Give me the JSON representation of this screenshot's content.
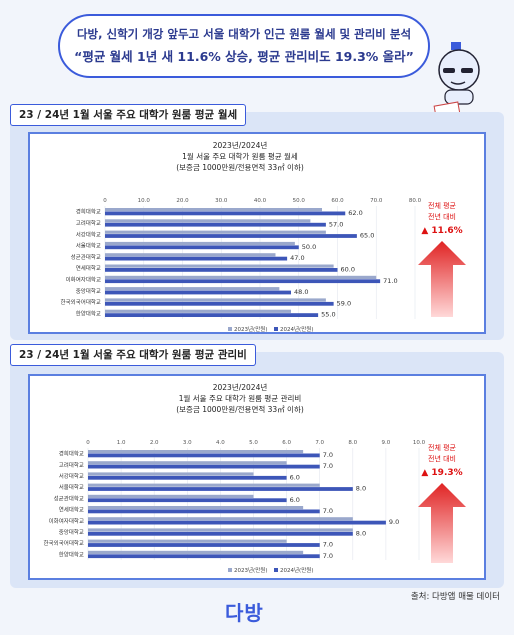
{
  "header": {
    "line1": "다방, 신학기 개강 앞두고 서울 대학가 인근 원룸 월세 및 관리비 분석",
    "line2": "“평균 월세 1년 새 11.6% 상승, 평균 관리비도 19.3% 올라”"
  },
  "colors": {
    "accent": "#3b5bdb",
    "bar2023": "#9aa8cc",
    "bar2024": "#3d56b8",
    "arrow": "#e02424"
  },
  "chart_data": [
    {
      "type": "bar",
      "section_title": "23 / 24년 1월 서울 주요 대학가 원룸 평균 월세",
      "title_lines": [
        "2023년/2024년",
        "1월 서울 주요 대학가 원룸 평균 월세",
        "(보증금 1000만원/전용면적 33㎡ 이하)"
      ],
      "orientation": "horizontal",
      "xlim": [
        0,
        80
      ],
      "ticks": [
        "0",
        "10.0",
        "20.0",
        "30.0",
        "40.0",
        "50.0",
        "60.0",
        "70.0",
        "80.0"
      ],
      "categories": [
        "경희대학교",
        "고려대학교",
        "서강대학교",
        "서울대학교",
        "성균관대학교",
        "연세대학교",
        "이화여자대학교",
        "중앙대학교",
        "한국외국어대학교",
        "한양대학교"
      ],
      "series": [
        {
          "name": "2023년(만원)",
          "values": [
            56,
            53,
            57,
            49,
            44,
            59,
            70,
            45,
            57,
            48
          ]
        },
        {
          "name": "2024년(만원)",
          "values": [
            62,
            57,
            65,
            50,
            47,
            60,
            71,
            48,
            59,
            55
          ]
        }
      ],
      "data_labels": [
        "62.0",
        "57.0",
        "65.0",
        "50.0",
        "47.0",
        "60.0",
        "71.0",
        "48.0",
        "59.0",
        "55.0"
      ],
      "side_text": [
        "전체 평균",
        "전년 대비"
      ],
      "side_value": "▲ 11.6%"
    },
    {
      "type": "bar",
      "section_title": "23 / 24년 1월 서울 주요 대학가 원룸 평균 관리비",
      "title_lines": [
        "2023년/2024년",
        "1월 서울 주요 대학가 원룸 평균 관리비",
        "(보증금 1000만원/전용면적 33㎡ 이하)"
      ],
      "orientation": "horizontal",
      "xlim": [
        0,
        10
      ],
      "ticks": [
        "0",
        "1.0",
        "2.0",
        "3.0",
        "4.0",
        "5.0",
        "6.0",
        "7.0",
        "8.0",
        "9.0",
        "10.0"
      ],
      "categories": [
        "경희대학교",
        "고려대학교",
        "서강대학교",
        "서울대학교",
        "성균관대학교",
        "연세대학교",
        "이화여자대학교",
        "중앙대학교",
        "한국외국어대학교",
        "한양대학교"
      ],
      "series": [
        {
          "name": "2023년(만원)",
          "values": [
            6.5,
            6.0,
            5.0,
            7.0,
            5.0,
            6.5,
            8.0,
            8.0,
            6.0,
            6.5
          ]
        },
        {
          "name": "2024년(만원)",
          "values": [
            7,
            7,
            6,
            8,
            6,
            7,
            9,
            8,
            7,
            7
          ]
        }
      ],
      "data_labels": [
        "7.0",
        "7.0",
        "6.0",
        "8.0",
        "6.0",
        "7.0",
        "9.0",
        "8.0",
        "7.0",
        "7.0"
      ],
      "side_text": [
        "전체 평균",
        "전년 대비"
      ],
      "side_value": "▲ 19.3%"
    }
  ],
  "footer": {
    "source": "출처: 다방앱 매물 데이터",
    "logo": "다방"
  }
}
